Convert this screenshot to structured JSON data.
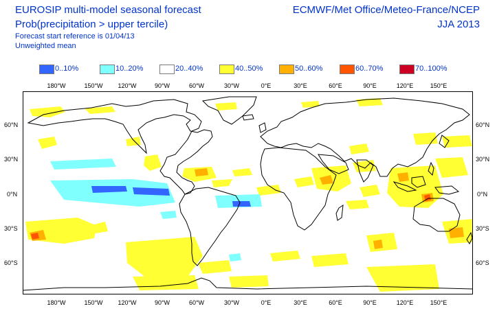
{
  "header": {
    "title_line1": "EUROSIP multi-model seasonal forecast",
    "title_line2": "Prob(precipitation > upper tercile)",
    "subtitle_line1": "Forecast start reference is 01/04/13",
    "subtitle_line2": "Unweighted mean",
    "centres": "ECMWF/Met Office/Meteo-France/NCEP",
    "season": "JJA 2013"
  },
  "legend": [
    {
      "label": "0..10%",
      "color": "#3366ff"
    },
    {
      "label": "10..20%",
      "color": "#80ffff"
    },
    {
      "label": "20..40%",
      "color": "#ffffff"
    },
    {
      "label": "40..50%",
      "color": "#ffff33"
    },
    {
      "label": "50..60%",
      "color": "#ffb000"
    },
    {
      "label": "60..70%",
      "color": "#ff5500"
    },
    {
      "label": "70..100%",
      "color": "#cc0022"
    }
  ],
  "axes": {
    "lon_labels": [
      "180°W",
      "150°W",
      "120°W",
      "90°W",
      "60°W",
      "30°W",
      "0°E",
      "30°E",
      "60°E",
      "90°E",
      "120°E",
      "150°E"
    ],
    "lat_labels": [
      "60°N",
      "30°N",
      "0°N",
      "30°S",
      "60°S"
    ]
  },
  "map": {
    "projection": "plate-carree",
    "lon_range": [
      160,
      520
    ],
    "lat_range": [
      -80,
      83
    ],
    "coastline_color": "#000000",
    "frame_color": "#000000"
  }
}
